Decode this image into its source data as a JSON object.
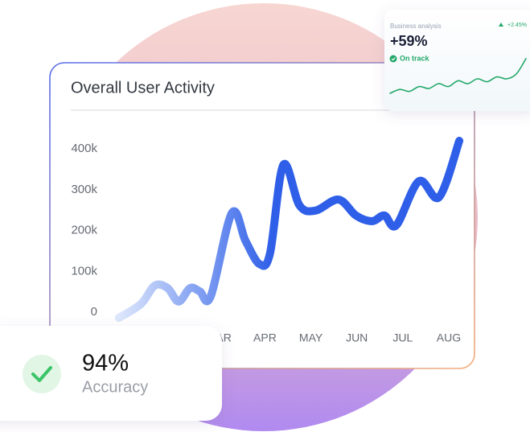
{
  "chart_data": [
    {
      "type": "line",
      "title": "Overall User Activity",
      "x": [
        0.82,
        1.3,
        1.6,
        1.88,
        2.12,
        2.37,
        2.58,
        2.82,
        3.28,
        3.58,
        3.88,
        4.11,
        4.4,
        4.75,
        5.1,
        5.6,
        5.98,
        6.33,
        6.6,
        6.86,
        7.35,
        7.79,
        8.23
      ],
      "series": [
        {
          "color": "#2f5fe8",
          "color_start": "#dde7fc",
          "values": [
            -14000,
            20000,
            65000,
            59000,
            26000,
            59000,
            51000,
            39000,
            243000,
            174000,
            118000,
            144000,
            361000,
            262000,
            249000,
            276000,
            237000,
            223000,
            237000,
            213000,
            321000,
            282000,
            420000
          ]
        }
      ],
      "xlim": [
        0.5,
        8.5
      ],
      "xticks": [
        {
          "value": 3,
          "label": "MAR"
        },
        {
          "value": 4,
          "label": "APR"
        },
        {
          "value": 5,
          "label": "MAY"
        },
        {
          "value": 6,
          "label": "JUN"
        },
        {
          "value": 7,
          "label": "JUL"
        },
        {
          "value": 8,
          "label": "AUG"
        }
      ],
      "ylim": [
        -20000,
        450000
      ],
      "yticks": [
        0,
        {
          "value": 100000,
          "label": "100k"
        },
        {
          "value": 200000,
          "label": "200k"
        },
        {
          "value": 300000,
          "label": "300k"
        },
        {
          "value": 400000,
          "label": "400k"
        }
      ],
      "grid": false
    },
    {
      "type": "sparkline",
      "x": [
        0,
        1,
        2,
        3,
        4,
        5,
        6,
        7,
        8,
        9,
        10,
        11,
        12,
        13,
        14
      ],
      "series": [
        {
          "color": "#22a86a",
          "values": [
            10,
            18,
            14,
            24,
            20,
            30,
            24,
            36,
            30,
            40,
            34,
            44,
            40,
            50,
            82
          ]
        }
      ],
      "xlim": [
        0,
        14
      ],
      "ylim": [
        0,
        100
      ]
    }
  ],
  "business_card": {
    "title": "Business analysis",
    "change": "+2.45%",
    "value": "+59%",
    "status": "On track"
  },
  "accuracy_card": {
    "value": "94%",
    "label": "Accuracy"
  }
}
